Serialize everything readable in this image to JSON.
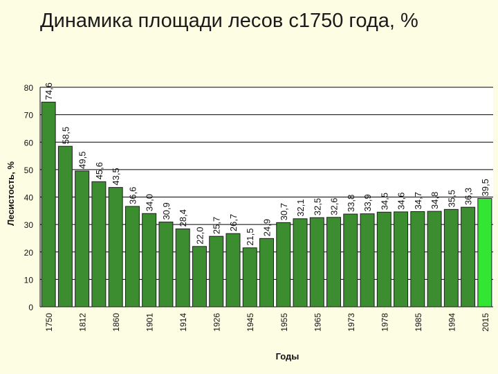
{
  "slide": {
    "title": "Динамика площади лесов с1750 года, %"
  },
  "chart_data": {
    "type": "bar",
    "title": "Динамика площади лесов с1750 года, %",
    "xlabel": "Годы",
    "ylabel": "Лесистость, %",
    "ylim": [
      0,
      80
    ],
    "yticks": [
      0,
      10,
      20,
      30,
      40,
      50,
      60,
      70,
      80
    ],
    "grid": "horizontal",
    "x_tick_labels": [
      "1750",
      "1812",
      "1860",
      "1901",
      "1914",
      "1926",
      "1945",
      "1955",
      "1965",
      "1973",
      "1978",
      "1985",
      "1994",
      "2015"
    ],
    "values": [
      74.6,
      58.5,
      49.5,
      45.6,
      43.5,
      36.6,
      34.0,
      30.9,
      28.4,
      22.0,
      25.7,
      26.7,
      21.5,
      24.9,
      30.7,
      32.1,
      32.5,
      32.6,
      33.8,
      33.9,
      34.5,
      34.6,
      34.7,
      34.8,
      35.5,
      36.3,
      39.5
    ],
    "data_labels": [
      "74,6",
      "58,5",
      "49,5",
      "45,6",
      "43,5",
      "36,6",
      "34,0",
      "30,9",
      "28,4",
      "22,0",
      "25,7",
      "26,7",
      "21,5",
      "24,9",
      "30,7",
      "32,1",
      "32,5",
      "32,6",
      "33,8",
      "33,9",
      "34,5",
      "34,6",
      "34,7",
      "34,8",
      "35,5",
      "36,3",
      "39,5"
    ],
    "colors": {
      "bar": "#3c8d2f",
      "bar_last": "#33e633",
      "plot_bg": "#ffffff",
      "grid": "#000000",
      "page_bg": "#fdfde3"
    }
  }
}
